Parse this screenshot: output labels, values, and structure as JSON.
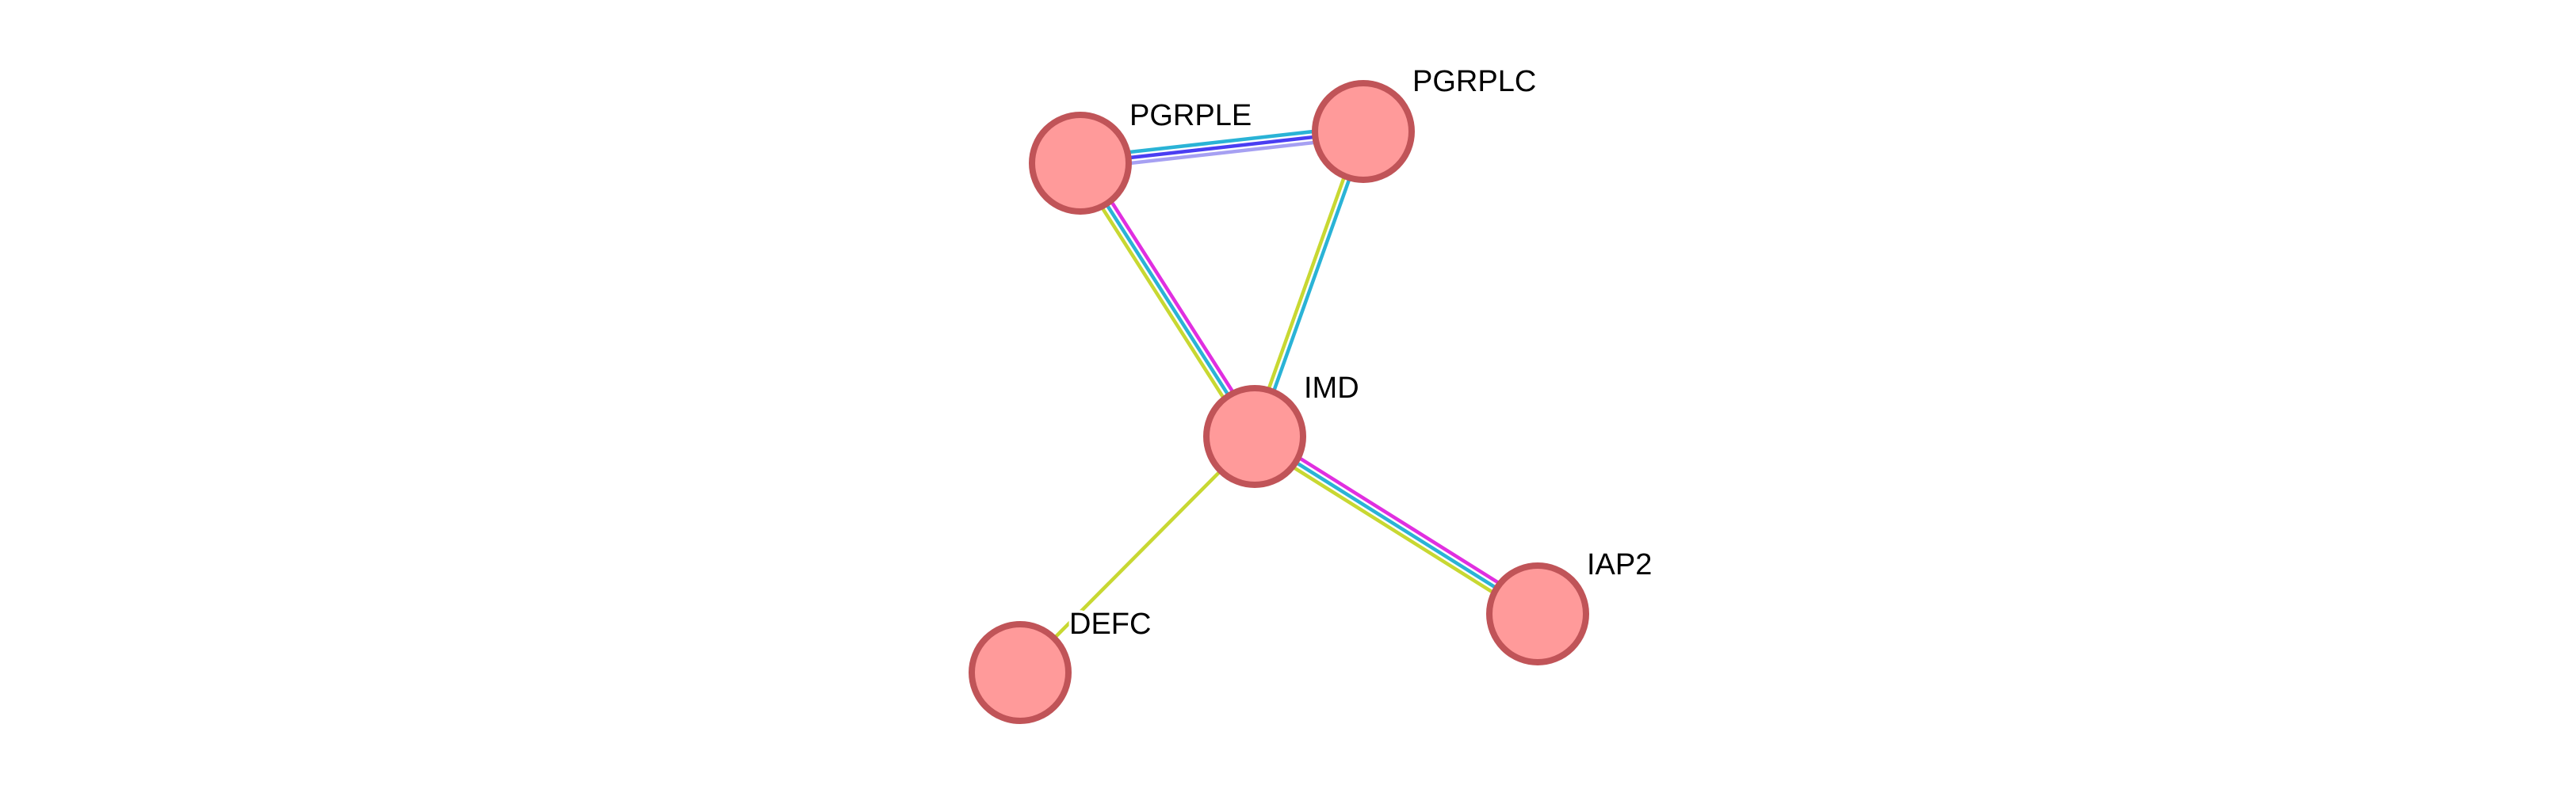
{
  "diagram": {
    "type": "protein-interaction-network",
    "colors": {
      "node_fill": "#ff9a9a",
      "node_stroke": "#c05458",
      "label_text": "#000000",
      "label_halo": "#ffffff"
    },
    "edge_colors": {
      "textmining": "#c8d832",
      "coexpression_blue": "#4a3ef2",
      "database": "#2ab3d6",
      "experiments": "#e02fe0",
      "homology": "#a6a0f2"
    },
    "nodes": [
      {
        "id": "PGRPLE",
        "label": "PGRPLE"
      },
      {
        "id": "PGRPLC",
        "label": "PGRPLC"
      },
      {
        "id": "IMD",
        "label": "IMD"
      },
      {
        "id": "IAP2",
        "label": "IAP2"
      },
      {
        "id": "DEFC",
        "label": "DEFC"
      }
    ],
    "edges": [
      {
        "source": "PGRPLE",
        "target": "PGRPLC",
        "channels": [
          "database",
          "coexpression_blue",
          "homology"
        ]
      },
      {
        "source": "PGRPLE",
        "target": "IMD",
        "channels": [
          "experiments",
          "database",
          "textmining"
        ]
      },
      {
        "source": "PGRPLC",
        "target": "IMD",
        "channels": [
          "database",
          "textmining"
        ]
      },
      {
        "source": "IMD",
        "target": "IAP2",
        "channels": [
          "experiments",
          "database",
          "textmining"
        ]
      },
      {
        "source": "IMD",
        "target": "DEFC",
        "channels": [
          "textmining"
        ]
      }
    ]
  }
}
